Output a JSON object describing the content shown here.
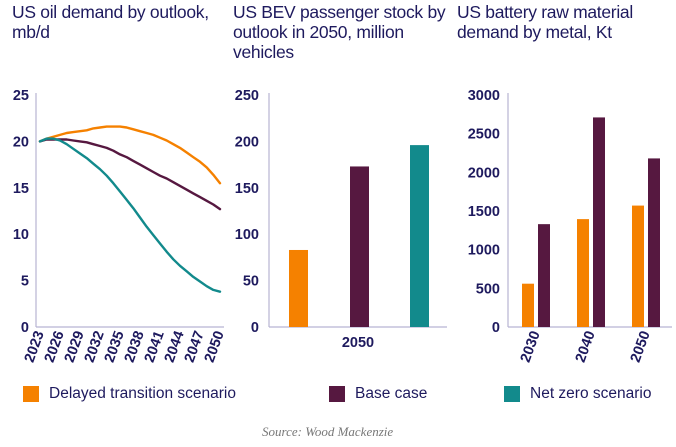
{
  "colors": {
    "delayed": "#f58100",
    "base": "#561840",
    "netzero": "#128a8c",
    "axis": "#b7b3d3",
    "text": "#1e1a5e"
  },
  "legend": [
    {
      "key": "delayed",
      "label": "Delayed transition scenario"
    },
    {
      "key": "base",
      "label": "Base case"
    },
    {
      "key": "netzero",
      "label": "Net zero scenario"
    }
  ],
  "source": "Source: Wood Mackenzie",
  "chart_data": [
    {
      "type": "line",
      "title": "US oil demand by outlook, mb/d",
      "xlabel": "",
      "ylabel": "",
      "ylim": [
        0,
        25
      ],
      "yticks": [
        "0",
        "5",
        "10",
        "15",
        "20",
        "25"
      ],
      "xticks": [
        "2023",
        "2026",
        "2029",
        "2032",
        "2035",
        "2038",
        "2041",
        "2044",
        "2047",
        "2050"
      ],
      "x": [
        2023,
        2024,
        2025,
        2026,
        2027,
        2028,
        2029,
        2030,
        2031,
        2032,
        2033,
        2034,
        2035,
        2036,
        2037,
        2038,
        2039,
        2040,
        2041,
        2042,
        2043,
        2044,
        2045,
        2046,
        2047,
        2048,
        2049,
        2050
      ],
      "series": [
        {
          "name": "Delayed transition scenario",
          "key": "delayed",
          "values": [
            20.0,
            20.3,
            20.5,
            20.7,
            20.9,
            21.0,
            21.1,
            21.2,
            21.4,
            21.5,
            21.6,
            21.6,
            21.6,
            21.5,
            21.3,
            21.1,
            20.9,
            20.7,
            20.4,
            20.1,
            19.7,
            19.3,
            18.8,
            18.3,
            17.8,
            17.2,
            16.4,
            15.5
          ]
        },
        {
          "name": "Base case",
          "key": "base",
          "values": [
            20.0,
            20.2,
            20.2,
            20.2,
            20.2,
            20.1,
            20.0,
            19.9,
            19.7,
            19.5,
            19.3,
            19.0,
            18.6,
            18.3,
            17.9,
            17.5,
            17.1,
            16.7,
            16.3,
            16.0,
            15.6,
            15.2,
            14.8,
            14.4,
            14.0,
            13.6,
            13.2,
            12.7
          ]
        },
        {
          "name": "Net zero scenario",
          "key": "netzero",
          "values": [
            20.0,
            20.3,
            20.3,
            20.1,
            19.7,
            19.2,
            18.7,
            18.2,
            17.6,
            17.0,
            16.3,
            15.5,
            14.6,
            13.7,
            12.8,
            11.8,
            10.8,
            9.9,
            9.0,
            8.1,
            7.3,
            6.6,
            6.0,
            5.4,
            4.9,
            4.4,
            4.0,
            3.8
          ]
        }
      ]
    },
    {
      "type": "bar",
      "title": "US BEV passenger stock by outlook in 2050, million vehicles",
      "ylim": [
        0,
        250
      ],
      "yticks": [
        "0",
        "50",
        "100",
        "150",
        "200",
        "250"
      ],
      "categories": [
        "2050"
      ],
      "series": [
        {
          "name": "Delayed transition scenario",
          "key": "delayed",
          "values": [
            83
          ]
        },
        {
          "name": "Base case",
          "key": "base",
          "values": [
            173
          ]
        },
        {
          "name": "Net zero scenario",
          "key": "netzero",
          "values": [
            196
          ]
        }
      ]
    },
    {
      "type": "bar",
      "title": "US battery raw material demand by metal, Kt",
      "ylim": [
        0,
        3000
      ],
      "yticks": [
        "0",
        "500",
        "1000",
        "1500",
        "2000",
        "2500",
        "3000"
      ],
      "categories": [
        "2030",
        "2040",
        "2050"
      ],
      "series": [
        {
          "name": "Delayed transition scenario",
          "key": "delayed",
          "values": [
            560,
            1395,
            1570
          ]
        },
        {
          "name": "Base case",
          "key": "base",
          "values": [
            1330,
            2710,
            2180
          ]
        }
      ]
    }
  ]
}
